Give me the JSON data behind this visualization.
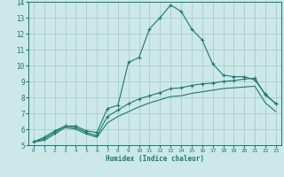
{
  "background_color": "#cce8e8",
  "grid_color": "#aacccc",
  "line_color": "#1a7a6e",
  "xlabel": "Humidex (Indice chaleur)",
  "xlim": [
    -0.5,
    23.5
  ],
  "ylim": [
    5,
    14
  ],
  "yticks": [
    5,
    6,
    7,
    8,
    9,
    10,
    11,
    12,
    13,
    14
  ],
  "xticks": [
    0,
    1,
    2,
    3,
    4,
    5,
    6,
    7,
    8,
    9,
    10,
    11,
    12,
    13,
    14,
    15,
    16,
    17,
    18,
    19,
    20,
    21,
    22,
    23
  ],
  "series1_x": [
    0,
    1,
    2,
    3,
    4,
    5,
    6,
    7,
    8,
    9,
    10,
    11,
    12,
    13,
    14,
    15,
    16,
    17,
    18,
    19,
    20,
    21,
    22,
    23
  ],
  "series1_y": [
    5.2,
    5.5,
    5.9,
    6.2,
    6.2,
    5.9,
    5.8,
    7.3,
    7.5,
    10.2,
    10.5,
    12.3,
    13.0,
    13.8,
    13.4,
    12.3,
    11.6,
    10.1,
    9.4,
    9.3,
    9.3,
    9.1,
    8.2,
    7.6
  ],
  "series2_x": [
    0,
    1,
    2,
    3,
    4,
    5,
    6,
    7,
    8,
    9,
    10,
    11,
    12,
    13,
    14,
    15,
    16,
    17,
    18,
    19,
    20,
    21,
    22,
    23
  ],
  "series2_y": [
    5.2,
    5.4,
    5.8,
    6.2,
    6.1,
    5.8,
    5.6,
    6.8,
    7.2,
    7.6,
    7.9,
    8.1,
    8.3,
    8.55,
    8.6,
    8.75,
    8.85,
    8.9,
    9.0,
    9.05,
    9.15,
    9.2,
    8.15,
    7.6
  ],
  "series3_x": [
    0,
    1,
    2,
    3,
    4,
    5,
    6,
    7,
    8,
    9,
    10,
    11,
    12,
    13,
    14,
    15,
    16,
    17,
    18,
    19,
    20,
    21,
    22,
    23
  ],
  "series3_y": [
    5.2,
    5.3,
    5.7,
    6.1,
    6.0,
    5.7,
    5.5,
    6.4,
    6.8,
    7.1,
    7.4,
    7.65,
    7.85,
    8.05,
    8.1,
    8.25,
    8.35,
    8.45,
    8.55,
    8.6,
    8.65,
    8.7,
    7.65,
    7.1
  ]
}
